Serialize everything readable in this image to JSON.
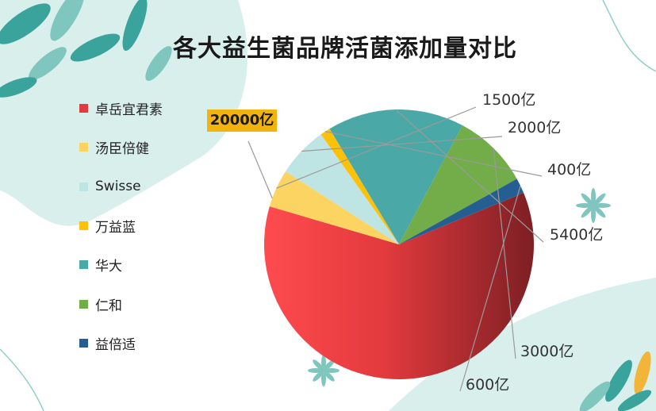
{
  "colors": {
    "bg_wash": "#d9efec",
    "leaf_teal": "#3aa39c",
    "leaf_light": "#7fc6bf",
    "leaf_yellow": "#f2b53a"
  },
  "chart_data": {
    "type": "pie",
    "title": "各大益生菌品牌活菌添加量对比",
    "legend_position": "left",
    "slices": [
      {
        "name": "卓岳宜君素",
        "value": 20000,
        "label": "20000亿",
        "color": "#e23a3d",
        "highlight": true
      },
      {
        "name": "汤臣倍健",
        "value": 1500,
        "label": "1500亿",
        "color": "#fcd462"
      },
      {
        "name": "Swisse",
        "value": 2000,
        "label": "2000亿",
        "color": "#bfe4e4"
      },
      {
        "name": "万益蓝",
        "value": 400,
        "label": "400亿",
        "color": "#fdc10a"
      },
      {
        "name": "华大",
        "value": 5400,
        "label": "5400亿",
        "color": "#4aa9a6"
      },
      {
        "name": "仁和",
        "value": 3000,
        "label": "3000亿",
        "color": "#72ad49"
      },
      {
        "name": "益倍适",
        "value": 600,
        "label": "600亿",
        "color": "#255f92"
      }
    ]
  }
}
